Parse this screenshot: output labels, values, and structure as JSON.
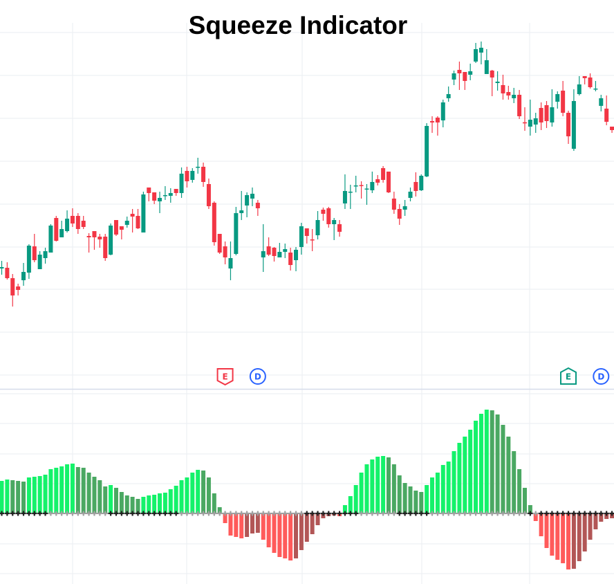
{
  "chart_data": [
    {
      "type": "candlestick",
      "title": "Squeeze Indicator",
      "xlabel": "",
      "ylabel": "",
      "ylim": [
        38,
        600
      ],
      "grid": true,
      "colors": {
        "up": "#089981",
        "down": "#f23645"
      },
      "ohlc": [
        [
          212,
          223,
          203,
          214
        ],
        [
          213,
          221,
          196,
          198
        ],
        [
          198,
          204,
          157,
          173
        ],
        [
          186,
          190,
          173,
          181
        ],
        [
          195,
          220,
          187,
          207
        ],
        [
          206,
          247,
          197,
          245
        ],
        [
          244,
          262,
          221,
          224
        ],
        [
          211,
          237,
          211,
          232
        ],
        [
          227,
          242,
          219,
          237
        ],
        [
          235,
          276,
          235,
          274
        ],
        [
          285,
          288,
          251,
          252
        ],
        [
          257,
          281,
          257,
          269
        ],
        [
          266,
          296,
          264,
          284
        ],
        [
          288,
          299,
          272,
          277
        ],
        [
          288,
          292,
          262,
          269
        ],
        [
          281,
          288,
          269,
          272
        ],
        [
          259,
          263,
          235,
          257
        ],
        [
          266,
          266,
          239,
          257
        ],
        [
          258,
          262,
          242,
          254
        ],
        [
          258,
          262,
          223,
          227
        ],
        [
          232,
          277,
          231,
          274
        ],
        [
          282,
          282,
          259,
          261
        ],
        [
          273,
          273,
          254,
          268
        ],
        [
          275,
          287,
          271,
          281
        ],
        [
          291,
          298,
          264,
          287
        ],
        [
          288,
          298,
          269,
          270
        ],
        [
          264,
          323,
          264,
          319
        ],
        [
          329,
          329,
          309,
          321
        ],
        [
          322,
          322,
          305,
          310
        ],
        [
          309,
          323,
          292,
          314
        ],
        [
          317,
          331,
          311,
          318
        ],
        [
          317,
          328,
          307,
          321
        ],
        [
          327,
          327,
          317,
          321
        ],
        [
          321,
          358,
          314,
          349
        ],
        [
          353,
          359,
          329,
          338
        ],
        [
          340,
          357,
          336,
          353
        ],
        [
          358,
          372,
          349,
          359
        ],
        [
          359,
          365,
          330,
          337
        ],
        [
          334,
          342,
          298,
          302
        ],
        [
          307,
          309,
          245,
          250
        ],
        [
          262,
          262,
          233,
          235
        ],
        [
          244,
          251,
          218,
          228
        ],
        [
          212,
          251,
          195,
          227
        ],
        [
          233,
          301,
          231,
          292
        ],
        [
          292,
          324,
          282,
          296
        ],
        [
          303,
          322,
          286,
          318
        ],
        [
          313,
          329,
          302,
          320
        ],
        [
          307,
          311,
          288,
          299
        ],
        [
          228,
          276,
          207,
          237
        ],
        [
          244,
          257,
          230,
          232
        ],
        [
          242,
          243,
          222,
          230
        ],
        [
          228,
          249,
          228,
          236
        ],
        [
          236,
          248,
          227,
          240
        ],
        [
          235,
          242,
          209,
          217
        ],
        [
          224,
          243,
          208,
          239
        ],
        [
          243,
          278,
          232,
          273
        ],
        [
          270,
          270,
          248,
          259
        ],
        [
          254,
          269,
          237,
          253
        ],
        [
          260,
          295,
          254,
          282
        ],
        [
          297,
          300,
          281,
          291
        ],
        [
          299,
          301,
          271,
          276
        ],
        [
          276,
          285,
          253,
          282
        ],
        [
          276,
          282,
          258,
          265
        ],
        [
          306,
          348,
          298,
          324
        ],
        [
          322,
          333,
          298,
          323
        ],
        [
          331,
          346,
          322,
          332
        ],
        [
          332.5,
          338,
          313,
          331.5
        ],
        [
          327,
          334,
          304,
          327.5
        ],
        [
          325,
          352,
          321,
          337
        ],
        [
          341,
          347,
          332,
          336
        ],
        [
          357,
          360,
          336,
          340
        ],
        [
          352,
          352,
          321,
          322
        ],
        [
          313,
          323,
          291,
          297
        ],
        [
          298,
          305,
          275,
          284
        ],
        [
          297,
          311,
          288,
          302
        ],
        [
          314,
          329,
          309,
          323
        ],
        [
          337,
          351,
          316,
          324
        ],
        [
          325,
          348,
          324,
          346
        ],
        [
          345,
          422,
          344,
          418
        ],
        [
          425,
          432,
          408,
          423
        ],
        [
          430,
          432,
          404,
          423
        ],
        [
          426,
          456,
          416,
          452
        ],
        [
          458,
          475,
          453,
          464
        ],
        [
          485,
          498,
          477,
          494
        ],
        [
          499,
          511,
          470,
          494
        ],
        [
          496,
          496,
          470,
          483
        ],
        [
          492,
          508,
          484,
          497
        ],
        [
          511,
          538,
          509,
          529
        ],
        [
          524,
          540,
          507,
          531
        ],
        [
          493,
          529,
          493,
          513
        ],
        [
          498,
          499,
          461,
          488
        ],
        [
          480,
          497,
          469,
          482
        ],
        [
          477,
          492,
          456,
          465
        ],
        [
          467,
          476,
          456,
          462
        ],
        [
          458,
          473,
          451,
          463
        ],
        [
          463,
          470,
          428,
          432
        ],
        [
          423.3,
          445,
          411,
          421.7
        ],
        [
          417,
          456,
          404,
          427
        ],
        [
          420,
          437,
          408,
          429
        ],
        [
          444,
          452,
          412,
          423
        ],
        [
          448,
          454,
          415,
          425
        ],
        [
          423,
          471,
          417,
          445
        ],
        [
          453,
          468,
          443,
          464
        ],
        [
          469,
          483,
          432,
          437
        ],
        [
          437,
          440,
          392,
          403
        ],
        [
          385,
          471,
          382,
          454
        ],
        [
          464,
          490,
          462,
          478
        ],
        [
          490,
          490,
          478,
          487
        ],
        [
          488,
          494,
          472,
          474
        ],
        [
          471,
          483,
          468,
          472
        ],
        [
          447,
          463,
          439,
          458
        ],
        [
          443,
          462,
          419,
          424
        ],
        [
          417,
          417,
          408,
          412
        ]
      ],
      "events": [
        {
          "label": "E",
          "bar": 41,
          "color": "#f23645",
          "shape": "flag-down"
        },
        {
          "label": "D",
          "bar": 47,
          "color": "#2962ff",
          "shape": "circle"
        },
        {
          "label": "E",
          "bar": 104,
          "color": "#089981",
          "shape": "flag-up"
        },
        {
          "label": "D",
          "bar": 110,
          "color": "#2962ff",
          "shape": "circle"
        }
      ]
    },
    {
      "type": "bar",
      "ylim": [
        -102,
        177
      ],
      "grid": true,
      "colors": {
        "pos_rising": "#14f26a",
        "pos_falling": "#4aa862",
        "neg_falling": "#ff5a5a",
        "neg_rising": "#b25656",
        "squeeze_on": "#222222",
        "squeeze_off": "#a0a0a0"
      },
      "values": [
        47,
        49,
        48,
        47,
        46,
        52,
        53,
        54,
        56,
        64,
        66,
        68,
        71,
        72,
        67,
        66,
        59,
        53,
        48,
        39,
        41,
        37,
        31,
        26,
        24,
        21,
        24,
        26,
        27,
        29,
        30,
        35,
        40,
        48,
        52,
        59,
        63,
        62,
        52,
        29,
        9,
        -14,
        -32,
        -34,
        -36,
        -34,
        -29,
        -28,
        -38,
        -49,
        -57,
        -63,
        -65,
        -68,
        -65,
        -53,
        -41,
        -30,
        -17,
        -7,
        -4,
        -3,
        -4,
        12,
        25,
        41,
        59,
        71,
        78,
        82,
        83,
        81,
        71,
        55,
        44,
        39,
        33,
        31,
        41,
        52,
        59,
        70,
        75,
        90,
        102,
        111,
        121,
        134,
        144,
        150,
        149,
        143,
        128,
        111,
        90,
        64,
        37,
        12,
        -11,
        -33,
        -50,
        -61,
        -67,
        -72,
        -81,
        -80,
        -69,
        -55,
        -38,
        -23,
        -12,
        -8,
        -7
      ],
      "squeeze_on": [
        1,
        1,
        1,
        1,
        1,
        1,
        1,
        1,
        1,
        0,
        0,
        0,
        0,
        0,
        0,
        0,
        0,
        0,
        0,
        0,
        1,
        1,
        1,
        1,
        1,
        1,
        1,
        1,
        1,
        1,
        1,
        1,
        1,
        0,
        0,
        0,
        0,
        0,
        0,
        0,
        0,
        0,
        0,
        0,
        0,
        0,
        0,
        0,
        0,
        0,
        0,
        0,
        0,
        0,
        0,
        0,
        1,
        1,
        1,
        1,
        1,
        1,
        1,
        1,
        1,
        1,
        0,
        0,
        0,
        0,
        0,
        0,
        0,
        1,
        1,
        1,
        1,
        1,
        1,
        0,
        0,
        0,
        0,
        0,
        0,
        0,
        0,
        0,
        0,
        0,
        0,
        0,
        0,
        0,
        0,
        0,
        0,
        1,
        0,
        1,
        1,
        1,
        1,
        1,
        1,
        1,
        1,
        1,
        1,
        1,
        1,
        1,
        1
      ]
    }
  ]
}
